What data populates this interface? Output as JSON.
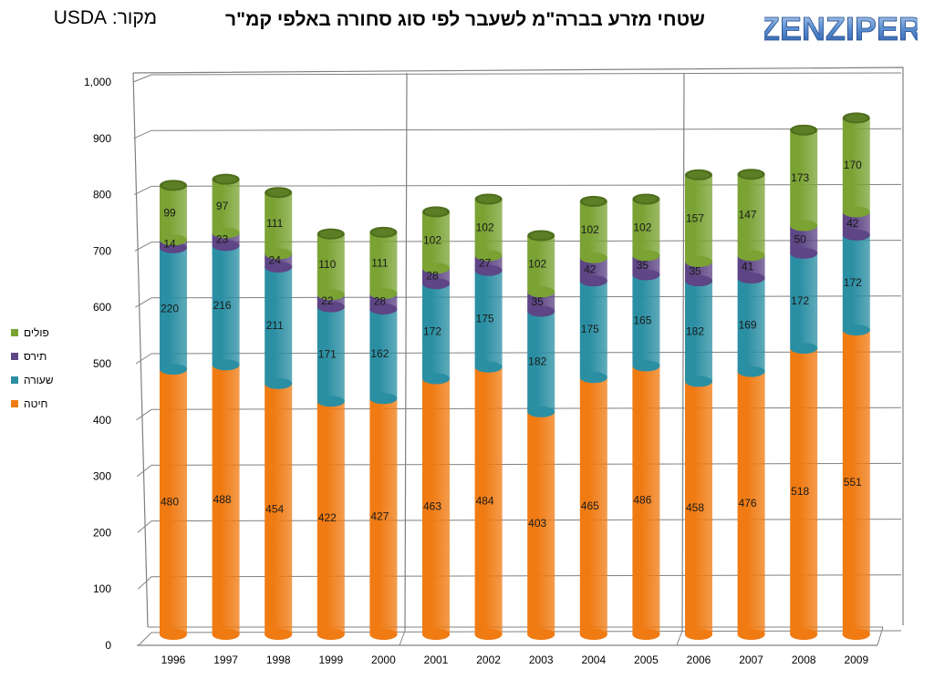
{
  "header": {
    "source_label": "מקור: USDA",
    "title": "שטחי מזרע בברה\"מ לשעבר לפי סוג סחורה באלפי קמ\"ר",
    "logo_text": "ZENZIPER"
  },
  "colors": {
    "חיטה": "#f07b13",
    "שעורה": "#2b8fa3",
    "תירס": "#5e4585",
    "פולים": "#7aa334",
    "grid": "#808080"
  },
  "chart_data": {
    "type": "bar",
    "stacked": true,
    "title": "שטחי מזרע בברה\"מ לשעבר לפי סוג סחורה באלפי קמ\"ר",
    "categories": [
      "1996",
      "1997",
      "1998",
      "1999",
      "2000",
      "2001",
      "2002",
      "2003",
      "2004",
      "2005",
      "2006",
      "2007",
      "2008",
      "2009"
    ],
    "series": [
      {
        "name": "חיטה",
        "values": [
          480,
          488,
          454,
          422,
          427,
          463,
          484,
          403,
          465,
          486,
          458,
          476,
          518,
          551
        ]
      },
      {
        "name": "שעורה",
        "values": [
          220,
          216,
          211,
          171,
          162,
          172,
          175,
          182,
          175,
          165,
          182,
          169,
          172,
          172
        ]
      },
      {
        "name": "תירס",
        "values": [
          14,
          23,
          24,
          22,
          28,
          28,
          27,
          35,
          42,
          35,
          35,
          41,
          50,
          42
        ]
      },
      {
        "name": "פולים",
        "values": [
          99,
          97,
          111,
          110,
          111,
          102,
          102,
          102,
          102,
          102,
          157,
          147,
          173,
          170
        ]
      }
    ],
    "ylim": [
      0,
      1000
    ],
    "yticks": [
      "0",
      "100",
      "200",
      "300",
      "400",
      "500",
      "600",
      "700",
      "800",
      "900",
      "1,000"
    ],
    "grid": true,
    "legend_position": "left"
  },
  "legend": {
    "items": [
      {
        "label": "פולים",
        "color": "#7aa334"
      },
      {
        "label": "תירס",
        "color": "#5e4585"
      },
      {
        "label": "שעורה",
        "color": "#2b8fa3"
      },
      {
        "label": "חיטה",
        "color": "#f07b13"
      }
    ]
  }
}
